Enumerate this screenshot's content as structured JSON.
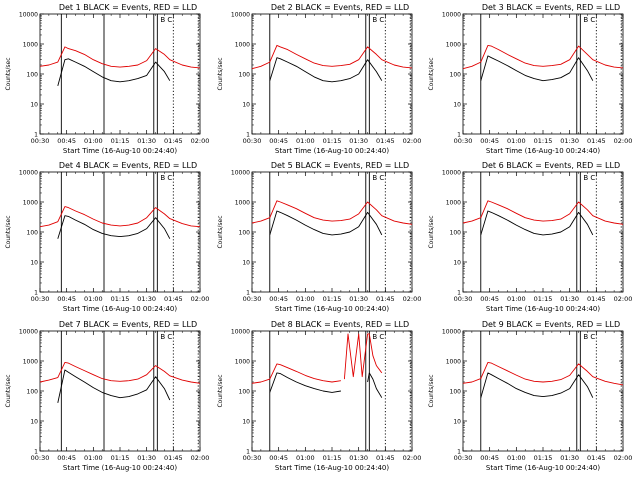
{
  "colors": {
    "events": "#000000",
    "lld": "#e00000",
    "markers": "#000000",
    "axes": "#000000",
    "background": "#ffffff"
  },
  "chart_data": [
    {
      "type": "line",
      "title": "Det 1 BLACK = Events, RED = LLD",
      "xlabel": "Start Time (16-Aug-10 00:24:40)",
      "ylabel": "Counts/sec",
      "y_scale": "log",
      "ylim": [
        1,
        10000
      ],
      "xlim": [
        "00:30",
        "02:00"
      ],
      "x_ticks": [
        "00:30",
        "00:45",
        "01:00",
        "01:15",
        "01:30",
        "01:45",
        "02:00"
      ],
      "y_ticks": [
        "1",
        "10",
        "100",
        "1000",
        "10000"
      ],
      "grid": false,
      "solid_markers": [
        "00:42",
        "01:06",
        "01:34",
        "01:36"
      ],
      "dotted_markers": [
        "01:45",
        "01:59"
      ],
      "letter_markers": [
        "B",
        "C"
      ],
      "x": [
        "00:30",
        "00:35",
        "00:40",
        "00:44",
        "00:46",
        "00:50",
        "00:55",
        "01:00",
        "01:05",
        "01:10",
        "01:15",
        "01:20",
        "01:25",
        "01:30",
        "01:35",
        "01:40",
        "01:43",
        "01:50",
        "01:55",
        "02:00"
      ],
      "series": [
        {
          "name": "Events",
          "values": [
            null,
            null,
            40,
            300,
            320,
            250,
            180,
            120,
            80,
            60,
            55,
            60,
            70,
            90,
            250,
            120,
            60,
            null,
            null,
            null
          ]
        },
        {
          "name": "LLD",
          "values": [
            180,
            200,
            250,
            800,
            700,
            600,
            450,
            300,
            220,
            180,
            170,
            180,
            200,
            280,
            700,
            450,
            300,
            200,
            170,
            160
          ]
        }
      ]
    },
    {
      "type": "line",
      "title": "Det 2 BLACK = Events, RED = LLD",
      "xlabel": "Start Time (16-Aug-10 00:24:40)",
      "ylabel": "Counts/sec",
      "y_scale": "log",
      "ylim": [
        1,
        10000
      ],
      "xlim": [
        "00:30",
        "02:00"
      ],
      "x_ticks": [
        "00:30",
        "00:45",
        "01:00",
        "01:15",
        "01:30",
        "01:45",
        "02:00"
      ],
      "y_ticks": [
        "1",
        "10",
        "100",
        "1000",
        "10000"
      ],
      "grid": false,
      "solid_markers": [
        "00:40",
        "01:34",
        "01:36"
      ],
      "dotted_markers": [
        "01:45",
        "01:59"
      ],
      "letter_markers": [
        "B",
        "C"
      ],
      "x": [
        "00:30",
        "00:35",
        "00:40",
        "00:44",
        "00:46",
        "00:50",
        "00:55",
        "01:00",
        "01:05",
        "01:10",
        "01:15",
        "01:20",
        "01:25",
        "01:30",
        "01:35",
        "01:40",
        "01:43",
        "01:50",
        "01:55",
        "02:00"
      ],
      "series": [
        {
          "name": "Events",
          "values": [
            null,
            null,
            60,
            350,
            320,
            250,
            180,
            120,
            80,
            60,
            55,
            60,
            70,
            100,
            300,
            120,
            60,
            null,
            null,
            null
          ]
        },
        {
          "name": "LLD",
          "values": [
            150,
            180,
            250,
            900,
            800,
            650,
            450,
            320,
            230,
            190,
            180,
            190,
            210,
            300,
            800,
            450,
            300,
            200,
            170,
            160
          ]
        }
      ]
    },
    {
      "type": "line",
      "title": "Det 3 BLACK = Events, RED = LLD",
      "xlabel": "Start Time (16-Aug-10 00:24:40)",
      "ylabel": "Counts/sec",
      "y_scale": "log",
      "ylim": [
        1,
        10000
      ],
      "xlim": [
        "00:30",
        "02:00"
      ],
      "x_ticks": [
        "00:30",
        "00:45",
        "01:00",
        "01:15",
        "01:30",
        "01:45",
        "02:00"
      ],
      "y_ticks": [
        "1",
        "10",
        "100",
        "1000",
        "10000"
      ],
      "grid": false,
      "solid_markers": [
        "00:40",
        "01:34",
        "01:36"
      ],
      "dotted_markers": [
        "01:45",
        "01:59"
      ],
      "letter_markers": [
        "B",
        "C"
      ],
      "x": [
        "00:30",
        "00:35",
        "00:40",
        "00:44",
        "00:46",
        "00:50",
        "00:55",
        "01:00",
        "01:05",
        "01:10",
        "01:15",
        "01:20",
        "01:25",
        "01:30",
        "01:35",
        "01:40",
        "01:43",
        "01:50",
        "01:55",
        "02:00"
      ],
      "series": [
        {
          "name": "Events",
          "values": [
            null,
            null,
            60,
            400,
            350,
            270,
            190,
            130,
            90,
            70,
            60,
            65,
            75,
            110,
            350,
            130,
            60,
            null,
            null,
            null
          ]
        },
        {
          "name": "LLD",
          "values": [
            150,
            180,
            250,
            900,
            850,
            650,
            450,
            320,
            230,
            190,
            180,
            190,
            210,
            300,
            850,
            450,
            300,
            200,
            170,
            160
          ]
        }
      ]
    },
    {
      "type": "line",
      "title": "Det 4 BLACK = Events, RED = LLD",
      "xlabel": "Start Time (16-Aug-10 00:24:40)",
      "ylabel": "Counts/sec",
      "y_scale": "log",
      "ylim": [
        1,
        10000
      ],
      "xlim": [
        "00:30",
        "02:00"
      ],
      "x_ticks": [
        "00:30",
        "00:45",
        "01:00",
        "01:15",
        "01:30",
        "01:45",
        "02:00"
      ],
      "y_ticks": [
        "1",
        "10",
        "100",
        "1000",
        "10000"
      ],
      "grid": false,
      "solid_markers": [
        "00:42",
        "01:06",
        "01:34",
        "01:36"
      ],
      "dotted_markers": [
        "01:45",
        "01:59"
      ],
      "letter_markers": [
        "B",
        "C"
      ],
      "x": [
        "00:30",
        "00:35",
        "00:40",
        "00:44",
        "00:46",
        "00:50",
        "00:55",
        "01:00",
        "01:05",
        "01:10",
        "01:15",
        "01:20",
        "01:25",
        "01:30",
        "01:35",
        "01:40",
        "01:43",
        "01:50",
        "01:55",
        "02:00"
      ],
      "series": [
        {
          "name": "Events",
          "values": [
            null,
            null,
            60,
            350,
            330,
            250,
            180,
            120,
            90,
            75,
            70,
            75,
            90,
            130,
            300,
            130,
            60,
            null,
            null,
            null
          ]
        },
        {
          "name": "LLD",
          "values": [
            150,
            170,
            220,
            700,
            650,
            500,
            380,
            270,
            200,
            170,
            160,
            170,
            200,
            300,
            650,
            400,
            280,
            190,
            160,
            150
          ]
        }
      ]
    },
    {
      "type": "line",
      "title": "Det 5 BLACK = Events, RED = LLD",
      "xlabel": "Start Time (16-Aug-10 00:24:40)",
      "ylabel": "Counts/sec",
      "y_scale": "log",
      "ylim": [
        1,
        10000
      ],
      "xlim": [
        "00:30",
        "02:00"
      ],
      "x_ticks": [
        "00:30",
        "00:45",
        "01:00",
        "01:15",
        "01:30",
        "01:45",
        "02:00"
      ],
      "y_ticks": [
        "1",
        "10",
        "100",
        "1000",
        "10000"
      ],
      "grid": false,
      "solid_markers": [
        "00:40",
        "01:34",
        "01:36"
      ],
      "dotted_markers": [
        "01:45",
        "01:59"
      ],
      "letter_markers": [
        "B",
        "C"
      ],
      "x": [
        "00:30",
        "00:35",
        "00:40",
        "00:44",
        "00:46",
        "00:50",
        "00:55",
        "01:00",
        "01:05",
        "01:10",
        "01:15",
        "01:20",
        "01:25",
        "01:30",
        "01:35",
        "01:40",
        "01:43",
        "01:50",
        "01:55",
        "02:00"
      ],
      "series": [
        {
          "name": "Events",
          "values": [
            null,
            null,
            80,
            500,
            450,
            350,
            250,
            170,
            120,
            90,
            80,
            85,
            100,
            150,
            450,
            180,
            80,
            null,
            null,
            null
          ]
        },
        {
          "name": "LLD",
          "values": [
            200,
            230,
            300,
            1100,
            1000,
            800,
            600,
            420,
            300,
            250,
            230,
            240,
            270,
            400,
            1000,
            550,
            350,
            230,
            200,
            180
          ]
        }
      ]
    },
    {
      "type": "line",
      "title": "Det 6 BLACK = Events, RED = LLD",
      "xlabel": "Start Time (16-Aug-10 00:24:40)",
      "ylabel": "Counts/sec",
      "y_scale": "log",
      "ylim": [
        1,
        10000
      ],
      "xlim": [
        "00:30",
        "02:00"
      ],
      "x_ticks": [
        "00:30",
        "00:45",
        "01:00",
        "01:15",
        "01:30",
        "01:45",
        "02:00"
      ],
      "y_ticks": [
        "1",
        "10",
        "100",
        "1000",
        "10000"
      ],
      "grid": false,
      "solid_markers": [
        "00:40",
        "01:34",
        "01:36"
      ],
      "dotted_markers": [
        "01:45",
        "01:59"
      ],
      "letter_markers": [
        "B",
        "C"
      ],
      "x": [
        "00:30",
        "00:35",
        "00:40",
        "00:44",
        "00:46",
        "00:50",
        "00:55",
        "01:00",
        "01:05",
        "01:10",
        "01:15",
        "01:20",
        "01:25",
        "01:30",
        "01:35",
        "01:40",
        "01:43",
        "01:50",
        "01:55",
        "02:00"
      ],
      "series": [
        {
          "name": "Events",
          "values": [
            null,
            null,
            80,
            500,
            450,
            350,
            250,
            170,
            120,
            90,
            80,
            85,
            100,
            150,
            450,
            180,
            80,
            null,
            null,
            null
          ]
        },
        {
          "name": "LLD",
          "values": [
            200,
            230,
            300,
            1100,
            1000,
            800,
            600,
            420,
            300,
            250,
            230,
            240,
            270,
            400,
            1000,
            550,
            350,
            230,
            200,
            180
          ]
        }
      ]
    },
    {
      "type": "line",
      "title": "Det 7 BLACK = Events, RED = LLD",
      "xlabel": "Start Time (16-Aug-10 00:24:40)",
      "ylabel": "Counts/sec",
      "y_scale": "log",
      "ylim": [
        1,
        10000
      ],
      "xlim": [
        "00:30",
        "02:00"
      ],
      "x_ticks": [
        "00:30",
        "00:45",
        "01:00",
        "01:15",
        "01:30",
        "01:45",
        "02:00"
      ],
      "y_ticks": [
        "1",
        "10",
        "100",
        "1000",
        "10000"
      ],
      "grid": false,
      "solid_markers": [
        "00:42",
        "01:06",
        "01:34",
        "01:36"
      ],
      "dotted_markers": [
        "01:45",
        "01:59"
      ],
      "letter_markers": [
        "B",
        "C"
      ],
      "x": [
        "00:30",
        "00:35",
        "00:40",
        "00:44",
        "00:46",
        "00:50",
        "00:55",
        "01:00",
        "01:05",
        "01:10",
        "01:15",
        "01:20",
        "01:25",
        "01:30",
        "01:35",
        "01:40",
        "01:43",
        "01:50",
        "01:55",
        "02:00"
      ],
      "series": [
        {
          "name": "Events",
          "values": [
            null,
            null,
            40,
            500,
            420,
            300,
            200,
            130,
            90,
            70,
            60,
            65,
            80,
            110,
            300,
            120,
            50,
            null,
            null,
            null
          ]
        },
        {
          "name": "LLD",
          "values": [
            200,
            230,
            280,
            900,
            850,
            650,
            480,
            350,
            260,
            220,
            210,
            220,
            250,
            350,
            700,
            450,
            320,
            230,
            200,
            180
          ]
        }
      ]
    },
    {
      "type": "line",
      "title": "Det 8 BLACK = Events, RED = LLD",
      "xlabel": "Start Time (16-Aug-10 00:24:40)",
      "ylabel": "Counts/sec",
      "y_scale": "log",
      "ylim": [
        1,
        10000
      ],
      "xlim": [
        "00:30",
        "02:00"
      ],
      "x_ticks": [
        "00:30",
        "00:45",
        "01:00",
        "01:15",
        "01:30",
        "01:45",
        "02:00"
      ],
      "y_ticks": [
        "1",
        "10",
        "100",
        "1000",
        "10000"
      ],
      "grid": false,
      "solid_markers": [
        "00:40",
        "01:34",
        "01:36"
      ],
      "dotted_markers": [
        "01:45",
        "01:59"
      ],
      "letter_markers": [
        "B",
        "C"
      ],
      "x": [
        "00:30",
        "00:35",
        "00:40",
        "00:44",
        "00:46",
        "00:50",
        "00:55",
        "01:00",
        "01:05",
        "01:10",
        "01:15",
        "01:20",
        "01:25",
        "01:22",
        "01:24",
        "01:27",
        "01:30",
        "01:32",
        "01:35",
        "01:36",
        "01:38",
        "01:40",
        "01:43"
      ],
      "series": [
        {
          "name": "Events",
          "values": [
            null,
            null,
            90,
            400,
            380,
            280,
            200,
            150,
            120,
            100,
            90,
            100,
            null,
            null,
            null,
            null,
            null,
            null,
            200,
            400,
            250,
            120,
            60
          ]
        },
        {
          "name": "LLD",
          "values": [
            180,
            200,
            250,
            800,
            750,
            600,
            450,
            330,
            260,
            220,
            200,
            220,
            null,
            250,
            8000,
            300,
            8000,
            300,
            8000,
            8000,
            1500,
            700,
            400
          ]
        }
      ]
    },
    {
      "type": "line",
      "title": "Det 9 BLACK = Events, RED = LLD",
      "xlabel": "Start Time (16-Aug-10 00:24:40)",
      "ylabel": "Counts/sec",
      "y_scale": "log",
      "ylim": [
        1,
        10000
      ],
      "xlim": [
        "00:30",
        "02:00"
      ],
      "x_ticks": [
        "00:30",
        "00:45",
        "01:00",
        "01:15",
        "01:30",
        "01:45",
        "02:00"
      ],
      "y_ticks": [
        "1",
        "10",
        "100",
        "1000",
        "10000"
      ],
      "grid": false,
      "solid_markers": [
        "00:40",
        "01:34",
        "01:36"
      ],
      "dotted_markers": [
        "01:45",
        "01:59"
      ],
      "letter_markers": [
        "B",
        "C"
      ],
      "x": [
        "00:30",
        "00:35",
        "00:40",
        "00:44",
        "00:46",
        "00:50",
        "00:55",
        "01:00",
        "01:05",
        "01:10",
        "01:15",
        "01:20",
        "01:25",
        "01:30",
        "01:35",
        "01:40",
        "01:43",
        "01:50",
        "01:55",
        "02:00"
      ],
      "series": [
        {
          "name": "Events",
          "values": [
            null,
            null,
            60,
            400,
            350,
            260,
            180,
            120,
            90,
            70,
            65,
            70,
            85,
            120,
            350,
            140,
            60,
            null,
            null,
            null
          ]
        },
        {
          "name": "LLD",
          "values": [
            180,
            200,
            260,
            900,
            850,
            650,
            470,
            340,
            250,
            210,
            200,
            210,
            240,
            330,
            800,
            450,
            300,
            210,
            180,
            160
          ]
        }
      ]
    }
  ]
}
